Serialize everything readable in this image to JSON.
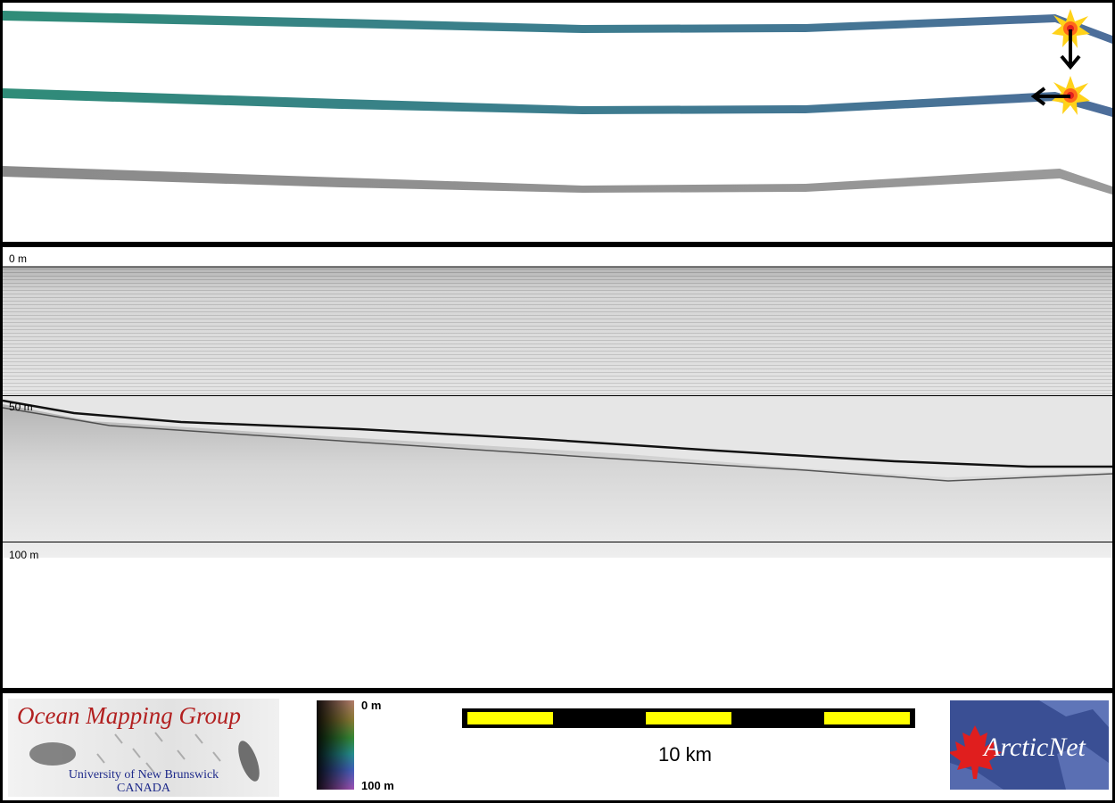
{
  "profile": {
    "depth_labels": [
      "0 m",
      "50 m",
      "100 m"
    ]
  },
  "legend": {
    "colorbar_top": "0 m",
    "colorbar_bottom": "100 m",
    "scale_label": "10 km"
  },
  "logos": {
    "omg_title": "Ocean Mapping Group",
    "omg_line1": "University of New Brunswick",
    "omg_line2": "CANADA",
    "arcticnet": "ArcticNet"
  },
  "colors": {
    "scalebar_yellow": "#ffff00",
    "omg_red": "#b22020",
    "omg_blue": "#1e2a8a",
    "arcticnet_blue": "#3a4f94",
    "maple_red": "#e01e1e"
  },
  "icons": [
    "explosion-marker-icon",
    "arrow-down-icon",
    "arrow-left-icon",
    "maple-leaf-icon"
  ]
}
